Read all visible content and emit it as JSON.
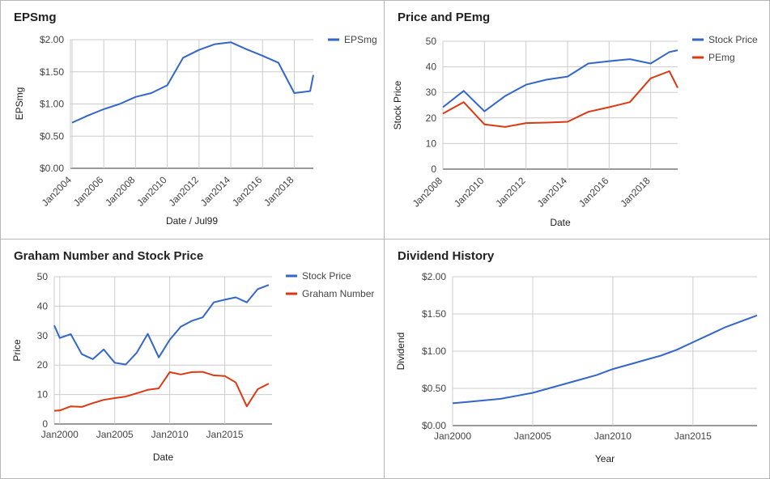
{
  "panels": [
    {
      "title": "EPSmg"
    },
    {
      "title": "Price and PEmg"
    },
    {
      "title": "Graham Number and Stock Price"
    },
    {
      "title": "Dividend History"
    }
  ],
  "chart_data": [
    {
      "type": "line",
      "title": "EPSmg",
      "xlabel": "Date / Jul99",
      "ylabel": "EPSmg",
      "xlim": [
        2003.9,
        2019.2
      ],
      "ylim": [
        0,
        2
      ],
      "yticks": [
        0,
        0.5,
        1,
        1.5,
        2
      ],
      "ytick_labels": [
        "$0.00",
        "$0.50",
        "$1.00",
        "$1.50",
        "$2.00"
      ],
      "xticks": [
        2004,
        2006,
        2008,
        2010,
        2012,
        2014,
        2016,
        2018
      ],
      "xtick_labels": [
        "Jan2004",
        "Jan2006",
        "Jan2008",
        "Jan2010",
        "Jan2012",
        "Jan2014",
        "Jan2016",
        "Jan2018"
      ],
      "legend_position": "right",
      "grid": true,
      "series": [
        {
          "name": "EPSmg",
          "color": "#3366cc",
          "x": [
            2004.0,
            2005.0,
            2006.0,
            2007.0,
            2008.0,
            2009.0,
            2010.0,
            2011.0,
            2012.0,
            2013.0,
            2014.0,
            2015.0,
            2016.0,
            2017.0,
            2018.0,
            2019.0,
            2019.2
          ],
          "y": [
            0.71,
            0.82,
            0.92,
            1.0,
            1.11,
            1.17,
            1.29,
            1.72,
            1.84,
            1.93,
            1.96,
            1.85,
            1.75,
            1.64,
            1.17,
            1.2,
            1.45
          ]
        }
      ]
    },
    {
      "type": "line",
      "title": "Price and PEmg",
      "xlabel": "Date",
      "ylabel": "Stock Price",
      "xlim": [
        2008,
        2019.3
      ],
      "ylim": [
        0,
        50
      ],
      "yticks": [
        0,
        10,
        20,
        30,
        40,
        50
      ],
      "ytick_labels": [
        "0",
        "10",
        "20",
        "30",
        "40",
        "50"
      ],
      "xticks": [
        2008,
        2010,
        2012,
        2014,
        2016,
        2018
      ],
      "xtick_labels": [
        "Jan2008",
        "Jan2010",
        "Jan2012",
        "Jan2014",
        "Jan2016",
        "Jan2018"
      ],
      "legend_position": "right",
      "grid": true,
      "series": [
        {
          "name": "Stock Price",
          "color": "#3366cc",
          "x": [
            2008.0,
            2009.0,
            2010.0,
            2011.0,
            2012.0,
            2013.0,
            2014.0,
            2015.0,
            2016.0,
            2017.0,
            2018.0,
            2018.9,
            2019.3
          ],
          "y": [
            24.2,
            30.6,
            22.6,
            28.6,
            33.0,
            35.0,
            36.2,
            41.3,
            42.2,
            43.0,
            41.3,
            45.8,
            46.5
          ]
        },
        {
          "name": "PEmg",
          "color": "#dc3912",
          "x": [
            2008.0,
            2009.0,
            2010.0,
            2011.0,
            2012.0,
            2013.0,
            2014.0,
            2015.0,
            2016.0,
            2017.0,
            2018.0,
            2018.9,
            2019.3
          ],
          "y": [
            21.7,
            26.2,
            17.5,
            16.5,
            18.0,
            18.2,
            18.5,
            22.4,
            24.2,
            26.2,
            35.5,
            38.3,
            31.8
          ]
        }
      ]
    },
    {
      "type": "line",
      "title": "Graham Number and Stock Price",
      "xlabel": "Date",
      "ylabel": "Price",
      "xlim": [
        1999.5,
        2019.3
      ],
      "ylim": [
        0,
        50
      ],
      "yticks": [
        0,
        10,
        20,
        30,
        40,
        50
      ],
      "ytick_labels": [
        "0",
        "10",
        "20",
        "30",
        "40",
        "50"
      ],
      "xticks": [
        2000,
        2005,
        2010,
        2015
      ],
      "xtick_labels": [
        "Jan2000",
        "Jan2005",
        "Jan2010",
        "Jan2015"
      ],
      "legend_position": "right",
      "grid": true,
      "series": [
        {
          "name": "Stock Price",
          "color": "#3366cc",
          "x": [
            1999.5,
            2000.0,
            2001.0,
            2002.0,
            2003.0,
            2004.0,
            2005.0,
            2006.0,
            2007.0,
            2008.0,
            2009.0,
            2010.0,
            2011.0,
            2012.0,
            2013.0,
            2014.0,
            2015.0,
            2016.0,
            2017.0,
            2018.0,
            2019.0
          ],
          "y": [
            33.5,
            29.2,
            30.5,
            23.7,
            22.0,
            25.3,
            20.8,
            20.2,
            24.2,
            30.6,
            22.6,
            28.6,
            33.0,
            35.0,
            36.2,
            41.3,
            42.2,
            43.0,
            41.3,
            45.8,
            47.2
          ]
        },
        {
          "name": "Graham Number",
          "color": "#dc3912",
          "x": [
            1999.5,
            2000.0,
            2001.0,
            2002.0,
            2003.0,
            2004.0,
            2005.0,
            2006.0,
            2007.0,
            2008.0,
            2009.0,
            2010.0,
            2011.0,
            2012.0,
            2013.0,
            2014.0,
            2015.0,
            2016.0,
            2017.0,
            2018.0,
            2019.0
          ],
          "y": [
            4.5,
            4.6,
            6.0,
            5.8,
            7.1,
            8.2,
            8.8,
            9.3,
            10.4,
            11.6,
            12.1,
            17.6,
            16.8,
            17.6,
            17.7,
            16.5,
            16.3,
            14.1,
            6.0,
            11.8,
            13.7
          ]
        }
      ]
    },
    {
      "type": "line",
      "title": "Dividend History",
      "xlabel": "Year",
      "ylabel": "Dividend",
      "xlim": [
        2000,
        2019
      ],
      "ylim": [
        0,
        2
      ],
      "yticks": [
        0,
        0.5,
        1,
        1.5,
        2
      ],
      "ytick_labels": [
        "$0.00",
        "$0.50",
        "$1.00",
        "$1.50",
        "$2.00"
      ],
      "xticks": [
        2000,
        2005,
        2010,
        2015
      ],
      "xtick_labels": [
        "Jan2000",
        "Jan2005",
        "Jan2010",
        "Jan2015"
      ],
      "legend_position": "none",
      "grid": true,
      "series": [
        {
          "name": "",
          "color": "#3366cc",
          "x": [
            2000,
            2001,
            2002,
            2003,
            2004,
            2005,
            2006,
            2007,
            2008,
            2009,
            2010,
            2011,
            2012,
            2013,
            2014,
            2015,
            2016,
            2017,
            2018,
            2019
          ],
          "y": [
            0.3,
            0.32,
            0.34,
            0.36,
            0.4,
            0.44,
            0.5,
            0.56,
            0.62,
            0.68,
            0.76,
            0.82,
            0.88,
            0.94,
            1.02,
            1.12,
            1.22,
            1.32,
            1.4,
            1.48
          ]
        }
      ]
    }
  ]
}
